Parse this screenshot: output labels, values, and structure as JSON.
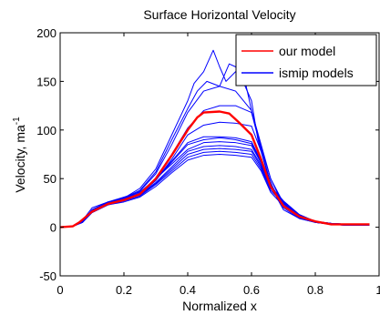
{
  "chart_data": {
    "type": "line",
    "title": "Surface Horizontal Velocity",
    "xlabel": "Normalized x",
    "ylabel": "Velocity, ma",
    "ylabel_superscript": "-1",
    "xlim": [
      0,
      1
    ],
    "ylim": [
      -50,
      200
    ],
    "x_ticks": [
      0,
      0.2,
      0.4,
      0.6,
      0.8,
      1
    ],
    "x_tick_labels": [
      "0",
      "0.2",
      "0.4",
      "0.6",
      "0.8",
      "1"
    ],
    "y_ticks": [
      -50,
      0,
      50,
      100,
      150,
      200
    ],
    "y_tick_labels": [
      "-50",
      "0",
      "50",
      "100",
      "150",
      "200"
    ],
    "grid": false,
    "legend_position": "top-right",
    "legend": [
      {
        "label": "our model",
        "color": "#ff0000"
      },
      {
        "label": "ismip models",
        "color": "#0000ff"
      }
    ],
    "series": [
      {
        "name": "our model",
        "group": "our model",
        "color": "#ff0000",
        "x": [
          0,
          0.04,
          0.06,
          0.1,
          0.15,
          0.2,
          0.25,
          0.3,
          0.35,
          0.4,
          0.43,
          0.45,
          0.5,
          0.53,
          0.56,
          0.6,
          0.63,
          0.66,
          0.7,
          0.75,
          0.8,
          0.85,
          0.9,
          0.95,
          0.97
        ],
        "y": [
          0,
          1,
          5,
          16,
          24,
          28,
          34,
          50,
          74,
          100,
          113,
          118,
          119,
          117,
          108,
          95,
          70,
          42,
          22,
          11,
          6,
          3,
          3,
          3,
          3
        ]
      },
      {
        "group": "ismip models",
        "color": "#0000ff",
        "x": [
          0,
          0.04,
          0.07,
          0.1,
          0.15,
          0.2,
          0.25,
          0.3,
          0.35,
          0.4,
          0.42,
          0.45,
          0.48,
          0.5,
          0.52,
          0.55,
          0.58,
          0.6,
          0.62,
          0.65,
          0.68,
          0.7,
          0.75,
          0.8,
          0.85,
          0.9,
          0.95,
          0.97
        ],
        "y": [
          0,
          1,
          7,
          20,
          26,
          30,
          40,
          60,
          95,
          130,
          148,
          160,
          182,
          165,
          150,
          160,
          145,
          130,
          90,
          55,
          30,
          18,
          9,
          5,
          3,
          2,
          2,
          2
        ]
      },
      {
        "group": "ismip models",
        "color": "#0000ff",
        "x": [
          0,
          0.04,
          0.07,
          0.1,
          0.15,
          0.2,
          0.25,
          0.3,
          0.35,
          0.4,
          0.43,
          0.46,
          0.5,
          0.53,
          0.55,
          0.58,
          0.6,
          0.63,
          0.66,
          0.7,
          0.75,
          0.8,
          0.85,
          0.9,
          0.95,
          0.97
        ],
        "y": [
          0,
          1,
          6,
          18,
          25,
          30,
          38,
          57,
          90,
          122,
          140,
          150,
          145,
          168,
          165,
          150,
          120,
          82,
          50,
          25,
          10,
          5,
          3,
          2,
          2,
          2
        ]
      },
      {
        "group": "ismip models",
        "color": "#0000ff",
        "x": [
          0,
          0.04,
          0.07,
          0.1,
          0.15,
          0.2,
          0.25,
          0.3,
          0.35,
          0.4,
          0.45,
          0.5,
          0.55,
          0.6,
          0.63,
          0.66,
          0.7,
          0.75,
          0.8,
          0.85,
          0.9,
          0.95
        ],
        "y": [
          0,
          1,
          6,
          17,
          25,
          29,
          37,
          55,
          85,
          118,
          140,
          145,
          140,
          120,
          85,
          50,
          22,
          10,
          5,
          3,
          2,
          2
        ]
      },
      {
        "group": "ismip models",
        "color": "#0000ff",
        "x": [
          0,
          0.04,
          0.07,
          0.1,
          0.15,
          0.2,
          0.25,
          0.3,
          0.35,
          0.4,
          0.45,
          0.5,
          0.55,
          0.6,
          0.63,
          0.66,
          0.7,
          0.75,
          0.8,
          0.85,
          0.9,
          0.95
        ],
        "y": [
          0,
          1,
          6,
          16,
          24,
          28,
          34,
          50,
          75,
          102,
          120,
          125,
          125,
          118,
          80,
          45,
          20,
          9,
          5,
          3,
          2,
          2
        ]
      },
      {
        "group": "ismip models",
        "color": "#0000ff",
        "x": [
          0,
          0.04,
          0.07,
          0.1,
          0.15,
          0.2,
          0.25,
          0.3,
          0.35,
          0.4,
          0.45,
          0.5,
          0.55,
          0.6,
          0.63,
          0.66,
          0.7,
          0.75,
          0.8,
          0.85,
          0.9,
          0.95
        ],
        "y": [
          0,
          1,
          6,
          17,
          25,
          29,
          35,
          50,
          68,
          87,
          93,
          93,
          92,
          88,
          68,
          42,
          25,
          12,
          6,
          4,
          3,
          3
        ]
      },
      {
        "group": "ismip models",
        "color": "#0000ff",
        "x": [
          0,
          0.04,
          0.07,
          0.1,
          0.15,
          0.2,
          0.25,
          0.3,
          0.35,
          0.4,
          0.45,
          0.5,
          0.55,
          0.6,
          0.63,
          0.66,
          0.7,
          0.75,
          0.8,
          0.85,
          0.9,
          0.95
        ],
        "y": [
          0,
          1,
          6,
          17,
          26,
          30,
          35,
          49,
          67,
          85,
          90,
          92,
          90,
          86,
          67,
          42,
          26,
          12,
          6,
          4,
          3,
          3
        ]
      },
      {
        "group": "ismip models",
        "color": "#0000ff",
        "x": [
          0,
          0.04,
          0.07,
          0.1,
          0.15,
          0.2,
          0.25,
          0.3,
          0.35,
          0.4,
          0.45,
          0.5,
          0.55,
          0.6,
          0.63,
          0.66,
          0.7,
          0.75,
          0.8,
          0.85,
          0.9,
          0.95
        ],
        "y": [
          0,
          1,
          6,
          18,
          26,
          31,
          36,
          50,
          65,
          80,
          87,
          88,
          87,
          84,
          66,
          42,
          27,
          13,
          6,
          4,
          3,
          3
        ]
      },
      {
        "group": "ismip models",
        "color": "#0000ff",
        "x": [
          0,
          0.04,
          0.07,
          0.1,
          0.15,
          0.2,
          0.25,
          0.3,
          0.35,
          0.4,
          0.45,
          0.5,
          0.55,
          0.6,
          0.63,
          0.66,
          0.7,
          0.75,
          0.8,
          0.85,
          0.9,
          0.95
        ],
        "y": [
          0,
          1,
          6,
          16,
          25,
          30,
          34,
          46,
          62,
          78,
          83,
          84,
          83,
          80,
          64,
          42,
          27,
          13,
          6,
          4,
          3,
          3
        ]
      },
      {
        "group": "ismip models",
        "color": "#0000ff",
        "x": [
          0,
          0.04,
          0.07,
          0.1,
          0.15,
          0.2,
          0.25,
          0.3,
          0.35,
          0.4,
          0.45,
          0.5,
          0.55,
          0.6,
          0.63,
          0.66,
          0.7,
          0.75,
          0.8,
          0.85,
          0.9,
          0.95
        ],
        "y": [
          0,
          1,
          5,
          16,
          24,
          28,
          33,
          45,
          60,
          75,
          80,
          81,
          80,
          78,
          62,
          40,
          25,
          12,
          6,
          4,
          3,
          3
        ]
      },
      {
        "group": "ismip models",
        "color": "#0000ff",
        "x": [
          0,
          0.04,
          0.07,
          0.1,
          0.15,
          0.2,
          0.25,
          0.3,
          0.35,
          0.4,
          0.45,
          0.5,
          0.55,
          0.6,
          0.63,
          0.66,
          0.7,
          0.75,
          0.8,
          0.85,
          0.9,
          0.95
        ],
        "y": [
          0,
          1,
          5,
          15,
          23,
          27,
          32,
          44,
          58,
          72,
          77,
          78,
          77,
          75,
          60,
          38,
          24,
          11,
          5,
          3,
          3,
          3
        ]
      },
      {
        "group": "ismip models",
        "color": "#0000ff",
        "x": [
          0,
          0.04,
          0.07,
          0.1,
          0.15,
          0.2,
          0.25,
          0.3,
          0.35,
          0.4,
          0.45,
          0.5,
          0.55,
          0.6,
          0.63,
          0.66,
          0.7,
          0.75,
          0.8,
          0.85,
          0.9,
          0.95
        ],
        "y": [
          0,
          1,
          5,
          15,
          23,
          26,
          31,
          42,
          56,
          69,
          74,
          75,
          74,
          72,
          58,
          36,
          22,
          10,
          5,
          3,
          3,
          3
        ]
      },
      {
        "group": "ismip models",
        "color": "#0000ff",
        "x": [
          0,
          0.04,
          0.07,
          0.1,
          0.15,
          0.2,
          0.25,
          0.3,
          0.35,
          0.4,
          0.45,
          0.5,
          0.55,
          0.6,
          0.63,
          0.66,
          0.7,
          0.75,
          0.8,
          0.85,
          0.9,
          0.95
        ],
        "y": [
          0,
          1,
          5,
          16,
          24,
          28,
          34,
          48,
          70,
          95,
          105,
          108,
          107,
          104,
          78,
          45,
          22,
          10,
          5,
          3,
          3,
          3
        ]
      }
    ]
  }
}
